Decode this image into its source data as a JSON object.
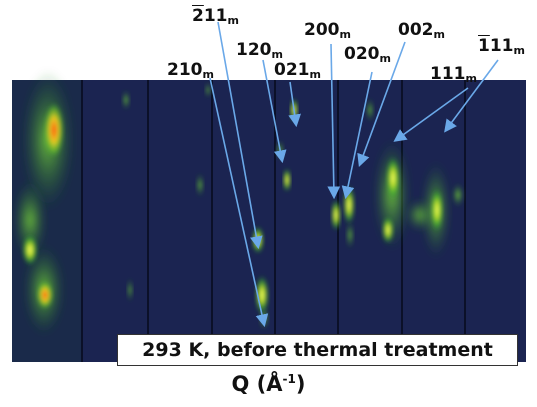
{
  "figure": {
    "caption": "293 K, before thermal treatment",
    "axis_label": {
      "symbol": "Q",
      "unit": "Å",
      "exponent": "-1"
    },
    "reflections": [
      {
        "id": "r2m11",
        "overline": "2",
        "digits": "11",
        "subscript": "m"
      },
      {
        "id": "r120",
        "overline": "",
        "digits": "120",
        "subscript": "m"
      },
      {
        "id": "r210",
        "overline": "",
        "digits": "210",
        "subscript": "m"
      },
      {
        "id": "r021",
        "overline": "",
        "digits": "021",
        "subscript": "m"
      },
      {
        "id": "r200",
        "overline": "",
        "digits": "200",
        "subscript": "m"
      },
      {
        "id": "r020",
        "overline": "",
        "digits": "020",
        "subscript": "m"
      },
      {
        "id": "r002",
        "overline": "",
        "digits": "002",
        "subscript": "m"
      },
      {
        "id": "r111",
        "overline": "",
        "digits": "111",
        "subscript": "m"
      },
      {
        "id": "r1m11",
        "overline": "1",
        "digits": "11",
        "subscript": "m"
      }
    ],
    "colors": {
      "background": "#1b2451",
      "spot_core": "#e8ff3a",
      "spot_hot": "#ff5a1a",
      "spot_glow": "#3fbf2a",
      "arrow": "#6aa8e8"
    }
  }
}
